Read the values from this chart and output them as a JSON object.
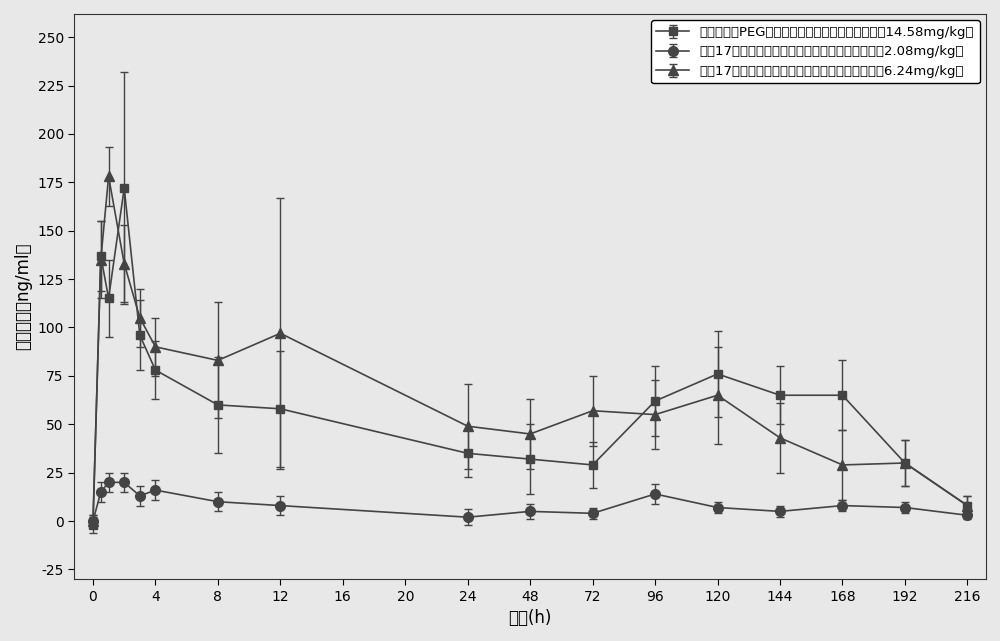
{
  "series": [
    {
      "marker": "s",
      "x": [
        0,
        0.5,
        1,
        2,
        3,
        4,
        8,
        12,
        24,
        48,
        72,
        96,
        120,
        144,
        168,
        192,
        216
      ],
      "y": [
        -2,
        137,
        115,
        172,
        96,
        78,
        60,
        58,
        35,
        32,
        29,
        62,
        76,
        65,
        65,
        30,
        8
      ],
      "yerr_low": [
        4,
        18,
        20,
        60,
        18,
        15,
        25,
        30,
        12,
        18,
        12,
        18,
        22,
        15,
        18,
        12,
        5
      ],
      "yerr_high": [
        4,
        18,
        20,
        60,
        18,
        15,
        25,
        30,
        12,
        18,
        12,
        18,
        22,
        15,
        18,
        12,
        5
      ]
    },
    {
      "marker": "o",
      "x": [
        0,
        0.5,
        1,
        2,
        3,
        4,
        8,
        12,
        24,
        48,
        72,
        96,
        120,
        144,
        168,
        192,
        216
      ],
      "y": [
        0,
        15,
        20,
        20,
        13,
        16,
        10,
        8,
        2,
        5,
        4,
        14,
        7,
        5,
        8,
        7,
        3
      ],
      "yerr_low": [
        3,
        5,
        5,
        5,
        5,
        5,
        5,
        5,
        4,
        4,
        3,
        5,
        3,
        3,
        3,
        3,
        2
      ],
      "yerr_high": [
        3,
        5,
        5,
        5,
        5,
        5,
        5,
        5,
        4,
        4,
        3,
        5,
        3,
        3,
        3,
        3,
        2
      ]
    },
    {
      "marker": "^",
      "x": [
        0,
        0.5,
        1,
        2,
        3,
        4,
        8,
        12,
        24,
        48,
        72,
        96,
        120,
        144,
        168,
        192,
        216
      ],
      "y": [
        0,
        135,
        178,
        133,
        105,
        90,
        83,
        97,
        49,
        45,
        57,
        55,
        65,
        43,
        29,
        30,
        8
      ],
      "yerr_low": [
        3,
        20,
        15,
        20,
        15,
        15,
        30,
        70,
        22,
        18,
        18,
        18,
        25,
        18,
        18,
        12,
        5
      ],
      "yerr_high": [
        3,
        20,
        15,
        20,
        15,
        15,
        30,
        70,
        22,
        18,
        18,
        18,
        25,
        18,
        18,
        12,
        5
      ]
    }
  ],
  "legend_labels": [
    "肌肉注射经PEG修饰的黄体酮纳米粒药时曲线图（14.58mg/kg）",
    "重备17天肌肉注射市售黄体酮油溶液药时曲线图（2.08mg/kg）",
    "重备17天肌肉注射市售黄体酮油溶液药时曲线图（6.24mg/kg）"
  ],
  "xlabel": "时间(h)",
  "ylabel": "血药浓度（ng/ml）",
  "ylim": [
    -30,
    262
  ],
  "yticks": [
    -25,
    0,
    25,
    50,
    75,
    100,
    125,
    150,
    175,
    200,
    225,
    250
  ],
  "x_tick_labels": [
    "0",
    "4",
    "8",
    "12",
    "16",
    "20",
    "24",
    "48",
    "72",
    "96",
    "120",
    "144",
    "168",
    "192",
    "216"
  ],
  "x_real_ticks": [
    0,
    4,
    8,
    12,
    16,
    20,
    24,
    48,
    72,
    96,
    120,
    144,
    168,
    192,
    216
  ],
  "background_color": "#e8e8e8",
  "plot_background_color": "#e8e8e8",
  "line_color": "#444444",
  "axis_fontsize": 12,
  "legend_fontsize": 9.5,
  "markersizes": [
    6,
    7,
    7
  ],
  "linewidth": 1.2
}
